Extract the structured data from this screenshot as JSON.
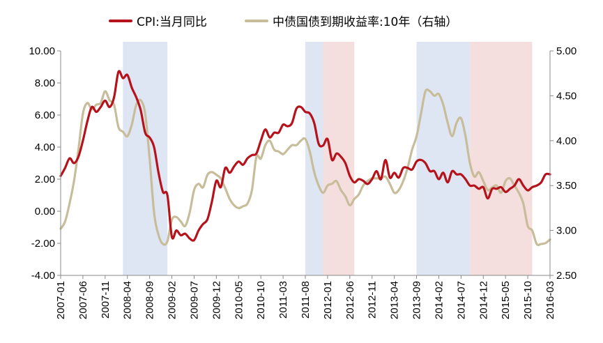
{
  "chart_data": {
    "type": "line",
    "title": "",
    "legend": {
      "position": "top",
      "entries": [
        {
          "label": "CPI:当月同比",
          "color": "#b5121b",
          "axis": "left"
        },
        {
          "label": "中债国债到期收益率:10年（右轴）",
          "color": "#c8bd9a",
          "axis": "right"
        }
      ]
    },
    "x_tick_labels": [
      "2007-01",
      "2007-06",
      "2007-11",
      "2008-04",
      "2008-09",
      "2009-02",
      "2009-07",
      "2009-12",
      "2010-05",
      "2010-10",
      "2011-03",
      "2011-08",
      "2012-01",
      "2012-06",
      "2012-11",
      "2013-04",
      "2013-09",
      "2014-02",
      "2014-07",
      "2014-12",
      "2015-05",
      "2015-10",
      "2016-03"
    ],
    "x_range": [
      "2007-01",
      "2016-03"
    ],
    "y_left": {
      "range": [
        -4,
        10
      ],
      "ticks": [
        "-4.00",
        "-2.00",
        "0.00",
        "2.00",
        "4.00",
        "6.00",
        "8.00",
        "10.00"
      ]
    },
    "y_right": {
      "range": [
        2.5,
        5.0
      ],
      "ticks": [
        "2.50",
        "3.00",
        "3.50",
        "4.00",
        "4.50",
        "5.00"
      ]
    },
    "shaded_periods": [
      {
        "start": "2008-03",
        "end": "2009-01",
        "color": "#dfe6f3"
      },
      {
        "start": "2011-08",
        "end": "2011-12",
        "color": "#dfe6f3"
      },
      {
        "start": "2011-12",
        "end": "2012-07",
        "color": "#f5dede"
      },
      {
        "start": "2013-09",
        "end": "2014-09",
        "color": "#dfe6f3"
      },
      {
        "start": "2014-09",
        "end": "2015-11",
        "color": "#f5dede"
      }
    ],
    "series": [
      {
        "name": "CPI:当月同比",
        "axis": "left",
        "color": "#b5121b",
        "points": [
          [
            "2007-01",
            2.2
          ],
          [
            "2007-02",
            2.7
          ],
          [
            "2007-03",
            3.3
          ],
          [
            "2007-04",
            3.0
          ],
          [
            "2007-05",
            3.4
          ],
          [
            "2007-06",
            4.4
          ],
          [
            "2007-07",
            5.6
          ],
          [
            "2007-08",
            6.5
          ],
          [
            "2007-09",
            6.2
          ],
          [
            "2007-10",
            6.5
          ],
          [
            "2007-11",
            6.9
          ],
          [
            "2007-12",
            6.5
          ],
          [
            "2008-01",
            7.1
          ],
          [
            "2008-02",
            8.7
          ],
          [
            "2008-03",
            8.3
          ],
          [
            "2008-04",
            8.5
          ],
          [
            "2008-05",
            7.7
          ],
          [
            "2008-06",
            7.1
          ],
          [
            "2008-07",
            6.3
          ],
          [
            "2008-08",
            4.9
          ],
          [
            "2008-09",
            4.6
          ],
          [
            "2008-10",
            4.0
          ],
          [
            "2008-11",
            2.4
          ],
          [
            "2008-12",
            1.2
          ],
          [
            "2009-01",
            1.0
          ],
          [
            "2009-02",
            -1.6
          ],
          [
            "2009-03",
            -1.2
          ],
          [
            "2009-04",
            -1.5
          ],
          [
            "2009-05",
            -1.4
          ],
          [
            "2009-06",
            -1.7
          ],
          [
            "2009-07",
            -1.8
          ],
          [
            "2009-08",
            -1.2
          ],
          [
            "2009-09",
            -0.8
          ],
          [
            "2009-10",
            -0.5
          ],
          [
            "2009-11",
            0.6
          ],
          [
            "2009-12",
            1.9
          ],
          [
            "2010-01",
            1.5
          ],
          [
            "2010-02",
            2.7
          ],
          [
            "2010-03",
            2.4
          ],
          [
            "2010-04",
            2.8
          ],
          [
            "2010-05",
            3.1
          ],
          [
            "2010-06",
            2.9
          ],
          [
            "2010-07",
            3.3
          ],
          [
            "2010-08",
            3.5
          ],
          [
            "2010-09",
            3.6
          ],
          [
            "2010-10",
            4.4
          ],
          [
            "2010-11",
            5.1
          ],
          [
            "2010-12",
            4.6
          ],
          [
            "2011-01",
            4.9
          ],
          [
            "2011-02",
            4.9
          ],
          [
            "2011-03",
            5.4
          ],
          [
            "2011-04",
            5.3
          ],
          [
            "2011-05",
            5.5
          ],
          [
            "2011-06",
            6.4
          ],
          [
            "2011-07",
            6.5
          ],
          [
            "2011-08",
            6.2
          ],
          [
            "2011-09",
            6.1
          ],
          [
            "2011-10",
            5.5
          ],
          [
            "2011-11",
            4.2
          ],
          [
            "2011-12",
            4.1
          ],
          [
            "2012-01",
            4.5
          ],
          [
            "2012-02",
            3.2
          ],
          [
            "2012-03",
            3.6
          ],
          [
            "2012-04",
            3.4
          ],
          [
            "2012-05",
            3.0
          ],
          [
            "2012-06",
            2.2
          ],
          [
            "2012-07",
            1.8
          ],
          [
            "2012-08",
            2.0
          ],
          [
            "2012-09",
            1.9
          ],
          [
            "2012-10",
            1.7
          ],
          [
            "2012-11",
            2.0
          ],
          [
            "2012-12",
            2.5
          ],
          [
            "2013-01",
            2.0
          ],
          [
            "2013-02",
            3.2
          ],
          [
            "2013-03",
            2.1
          ],
          [
            "2013-04",
            2.4
          ],
          [
            "2013-05",
            2.1
          ],
          [
            "2013-06",
            2.7
          ],
          [
            "2013-07",
            2.7
          ],
          [
            "2013-08",
            2.6
          ],
          [
            "2013-09",
            3.1
          ],
          [
            "2013-10",
            3.2
          ],
          [
            "2013-11",
            3.0
          ],
          [
            "2013-12",
            2.5
          ],
          [
            "2014-01",
            2.5
          ],
          [
            "2014-02",
            2.0
          ],
          [
            "2014-03",
            2.4
          ],
          [
            "2014-04",
            1.8
          ],
          [
            "2014-05",
            2.5
          ],
          [
            "2014-06",
            2.3
          ],
          [
            "2014-07",
            2.3
          ],
          [
            "2014-08",
            2.0
          ],
          [
            "2014-09",
            1.6
          ],
          [
            "2014-10",
            1.6
          ],
          [
            "2014-11",
            1.4
          ],
          [
            "2014-12",
            1.5
          ],
          [
            "2015-01",
            0.8
          ],
          [
            "2015-02",
            1.4
          ],
          [
            "2015-03",
            1.4
          ],
          [
            "2015-04",
            1.5
          ],
          [
            "2015-05",
            1.2
          ],
          [
            "2015-06",
            1.4
          ],
          [
            "2015-07",
            1.6
          ],
          [
            "2015-08",
            2.0
          ],
          [
            "2015-09",
            1.6
          ],
          [
            "2015-10",
            1.3
          ],
          [
            "2015-11",
            1.5
          ],
          [
            "2015-12",
            1.6
          ],
          [
            "2016-01",
            1.8
          ],
          [
            "2016-02",
            2.3
          ],
          [
            "2016-03",
            2.3
          ]
        ]
      },
      {
        "name": "中债国债到期收益率:10年（右轴）",
        "axis": "right",
        "color": "#c8bd9a",
        "points": [
          [
            "2007-01",
            3.02
          ],
          [
            "2007-02",
            3.1
          ],
          [
            "2007-03",
            3.3
          ],
          [
            "2007-04",
            3.55
          ],
          [
            "2007-05",
            3.9
          ],
          [
            "2007-06",
            4.3
          ],
          [
            "2007-07",
            4.42
          ],
          [
            "2007-08",
            4.35
          ],
          [
            "2007-09",
            4.4
          ],
          [
            "2007-10",
            4.42
          ],
          [
            "2007-11",
            4.55
          ],
          [
            "2007-12",
            4.45
          ],
          [
            "2008-01",
            4.4
          ],
          [
            "2008-02",
            4.15
          ],
          [
            "2008-03",
            4.1
          ],
          [
            "2008-04",
            4.05
          ],
          [
            "2008-05",
            4.18
          ],
          [
            "2008-06",
            4.4
          ],
          [
            "2008-07",
            4.45
          ],
          [
            "2008-08",
            4.3
          ],
          [
            "2008-09",
            3.8
          ],
          [
            "2008-10",
            3.2
          ],
          [
            "2008-11",
            2.95
          ],
          [
            "2008-12",
            2.85
          ],
          [
            "2009-01",
            2.88
          ],
          [
            "2009-02",
            3.12
          ],
          [
            "2009-03",
            3.15
          ],
          [
            "2009-04",
            3.1
          ],
          [
            "2009-05",
            3.05
          ],
          [
            "2009-06",
            3.2
          ],
          [
            "2009-07",
            3.45
          ],
          [
            "2009-08",
            3.52
          ],
          [
            "2009-09",
            3.48
          ],
          [
            "2009-10",
            3.62
          ],
          [
            "2009-11",
            3.65
          ],
          [
            "2009-12",
            3.62
          ],
          [
            "2010-01",
            3.58
          ],
          [
            "2010-02",
            3.47
          ],
          [
            "2010-03",
            3.35
          ],
          [
            "2010-04",
            3.28
          ],
          [
            "2010-05",
            3.25
          ],
          [
            "2010-06",
            3.27
          ],
          [
            "2010-07",
            3.3
          ],
          [
            "2010-08",
            3.45
          ],
          [
            "2010-09",
            3.82
          ],
          [
            "2010-10",
            3.8
          ],
          [
            "2010-11",
            3.95
          ],
          [
            "2010-12",
            4.0
          ],
          [
            "2011-01",
            3.9
          ],
          [
            "2011-02",
            3.88
          ],
          [
            "2011-03",
            3.85
          ],
          [
            "2011-04",
            3.9
          ],
          [
            "2011-05",
            3.95
          ],
          [
            "2011-06",
            3.95
          ],
          [
            "2011-07",
            4.0
          ],
          [
            "2011-08",
            4.02
          ],
          [
            "2011-09",
            3.88
          ],
          [
            "2011-10",
            3.65
          ],
          [
            "2011-11",
            3.5
          ],
          [
            "2011-12",
            3.42
          ],
          [
            "2012-01",
            3.5
          ],
          [
            "2012-02",
            3.52
          ],
          [
            "2012-03",
            3.55
          ],
          [
            "2012-04",
            3.45
          ],
          [
            "2012-05",
            3.38
          ],
          [
            "2012-06",
            3.28
          ],
          [
            "2012-07",
            3.35
          ],
          [
            "2012-08",
            3.4
          ],
          [
            "2012-09",
            3.5
          ],
          [
            "2012-10",
            3.55
          ],
          [
            "2012-11",
            3.58
          ],
          [
            "2012-12",
            3.58
          ],
          [
            "2013-01",
            3.58
          ],
          [
            "2013-02",
            3.6
          ],
          [
            "2013-03",
            3.52
          ],
          [
            "2013-04",
            3.42
          ],
          [
            "2013-05",
            3.45
          ],
          [
            "2013-06",
            3.55
          ],
          [
            "2013-07",
            3.7
          ],
          [
            "2013-08",
            3.9
          ],
          [
            "2013-09",
            4.05
          ],
          [
            "2013-10",
            4.3
          ],
          [
            "2013-11",
            4.55
          ],
          [
            "2013-12",
            4.55
          ],
          [
            "2014-01",
            4.5
          ],
          [
            "2014-02",
            4.52
          ],
          [
            "2014-03",
            4.4
          ],
          [
            "2014-04",
            4.2
          ],
          [
            "2014-05",
            4.05
          ],
          [
            "2014-06",
            4.2
          ],
          [
            "2014-07",
            4.25
          ],
          [
            "2014-08",
            4.05
          ],
          [
            "2014-09",
            3.75
          ],
          [
            "2014-10",
            3.6
          ],
          [
            "2014-11",
            3.65
          ],
          [
            "2014-12",
            3.55
          ],
          [
            "2015-01",
            3.45
          ],
          [
            "2015-02",
            3.48
          ],
          [
            "2015-03",
            3.5
          ],
          [
            "2015-04",
            3.42
          ],
          [
            "2015-05",
            3.55
          ],
          [
            "2015-06",
            3.58
          ],
          [
            "2015-07",
            3.5
          ],
          [
            "2015-08",
            3.42
          ],
          [
            "2015-09",
            3.3
          ],
          [
            "2015-10",
            3.05
          ],
          [
            "2015-11",
            3.0
          ],
          [
            "2015-12",
            2.85
          ],
          [
            "2016-01",
            2.85
          ],
          [
            "2016-02",
            2.86
          ],
          [
            "2016-03",
            2.9
          ]
        ]
      }
    ]
  }
}
